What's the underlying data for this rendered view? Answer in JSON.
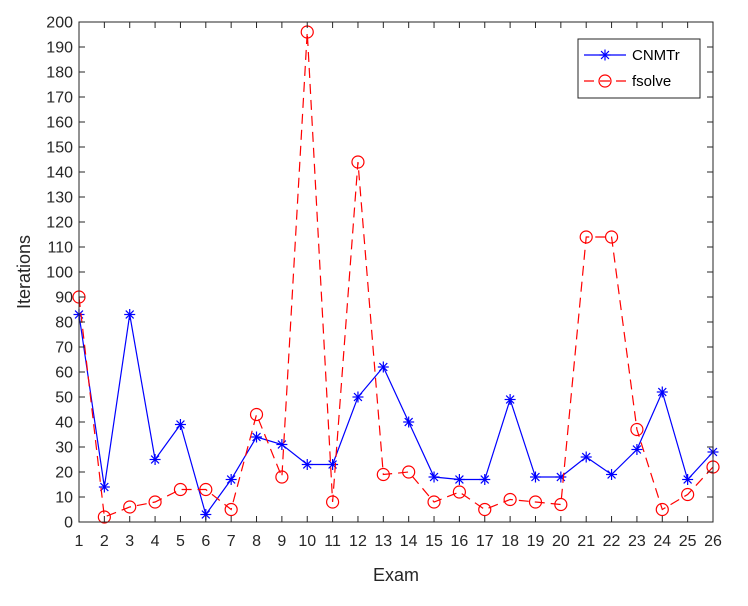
{
  "chart_data": {
    "type": "line",
    "title": "",
    "xlabel": "Exam",
    "ylabel": "Iterations",
    "xlim": [
      1,
      26
    ],
    "ylim": [
      0,
      200
    ],
    "x_ticks": [
      1,
      2,
      3,
      4,
      5,
      6,
      7,
      8,
      9,
      10,
      11,
      12,
      13,
      14,
      15,
      16,
      17,
      18,
      19,
      20,
      21,
      22,
      23,
      24,
      25,
      26
    ],
    "y_ticks": [
      0,
      10,
      20,
      30,
      40,
      50,
      60,
      70,
      80,
      90,
      100,
      110,
      120,
      130,
      140,
      150,
      160,
      170,
      180,
      190,
      200
    ],
    "grid": false,
    "legend_position": "top-right",
    "x": [
      1,
      2,
      3,
      4,
      5,
      6,
      7,
      8,
      9,
      10,
      11,
      12,
      13,
      14,
      15,
      16,
      17,
      18,
      19,
      20,
      21,
      22,
      23,
      24,
      25,
      26
    ],
    "series": [
      {
        "name": "CNMTr",
        "color": "#0000ff",
        "line_style": "solid",
        "marker": "asterisk",
        "values": [
          83,
          14,
          83,
          25,
          39,
          3,
          17,
          34,
          31,
          23,
          23,
          50,
          62,
          40,
          18,
          17,
          17,
          49,
          18,
          18,
          26,
          19,
          29,
          52,
          17,
          28
        ]
      },
      {
        "name": "fsolve",
        "color": "#ff0000",
        "line_style": "dashed",
        "marker": "circle",
        "values": [
          90,
          2,
          6,
          8,
          13,
          13,
          5,
          43,
          18,
          196,
          8,
          144,
          19,
          20,
          8,
          12,
          5,
          9,
          8,
          7,
          114,
          114,
          37,
          5,
          11,
          22
        ]
      }
    ]
  }
}
